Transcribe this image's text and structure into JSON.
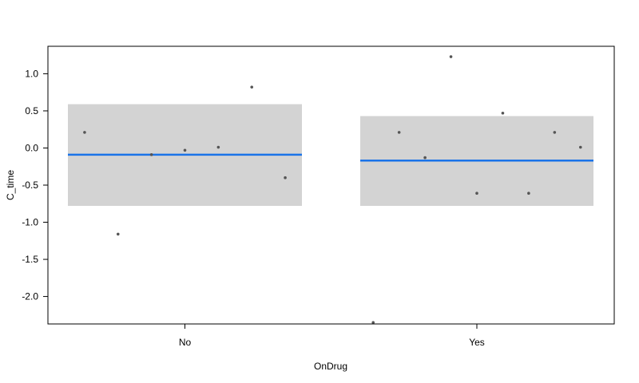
{
  "chart_data": {
    "type": "scatter",
    "title": "",
    "xlabel": "OnDrug",
    "ylabel": "C_time",
    "categories": [
      "No",
      "Yes"
    ],
    "y_ticks": [
      "1.0",
      "0.5",
      "0.0",
      "-0.5",
      "-1.0",
      "-1.5",
      "-2.0"
    ],
    "ylim": [
      -2.37,
      1.37
    ],
    "grid": false,
    "colors": {
      "fit_line": "#1a73e8",
      "band": "#d3d3d3",
      "points": "#555555"
    },
    "groups": [
      {
        "category": "No",
        "fit": -0.09,
        "band": [
          -0.78,
          0.59
        ],
        "points": [
          0.21,
          -1.16,
          -0.09,
          -0.03,
          0.01,
          0.82,
          -0.4
        ]
      },
      {
        "category": "Yes",
        "fit": -0.17,
        "band": [
          -0.78,
          0.43
        ],
        "points": [
          -2.35,
          0.21,
          -0.13,
          1.23,
          -0.61,
          0.47,
          -0.61,
          0.21,
          0.01
        ]
      }
    ]
  }
}
